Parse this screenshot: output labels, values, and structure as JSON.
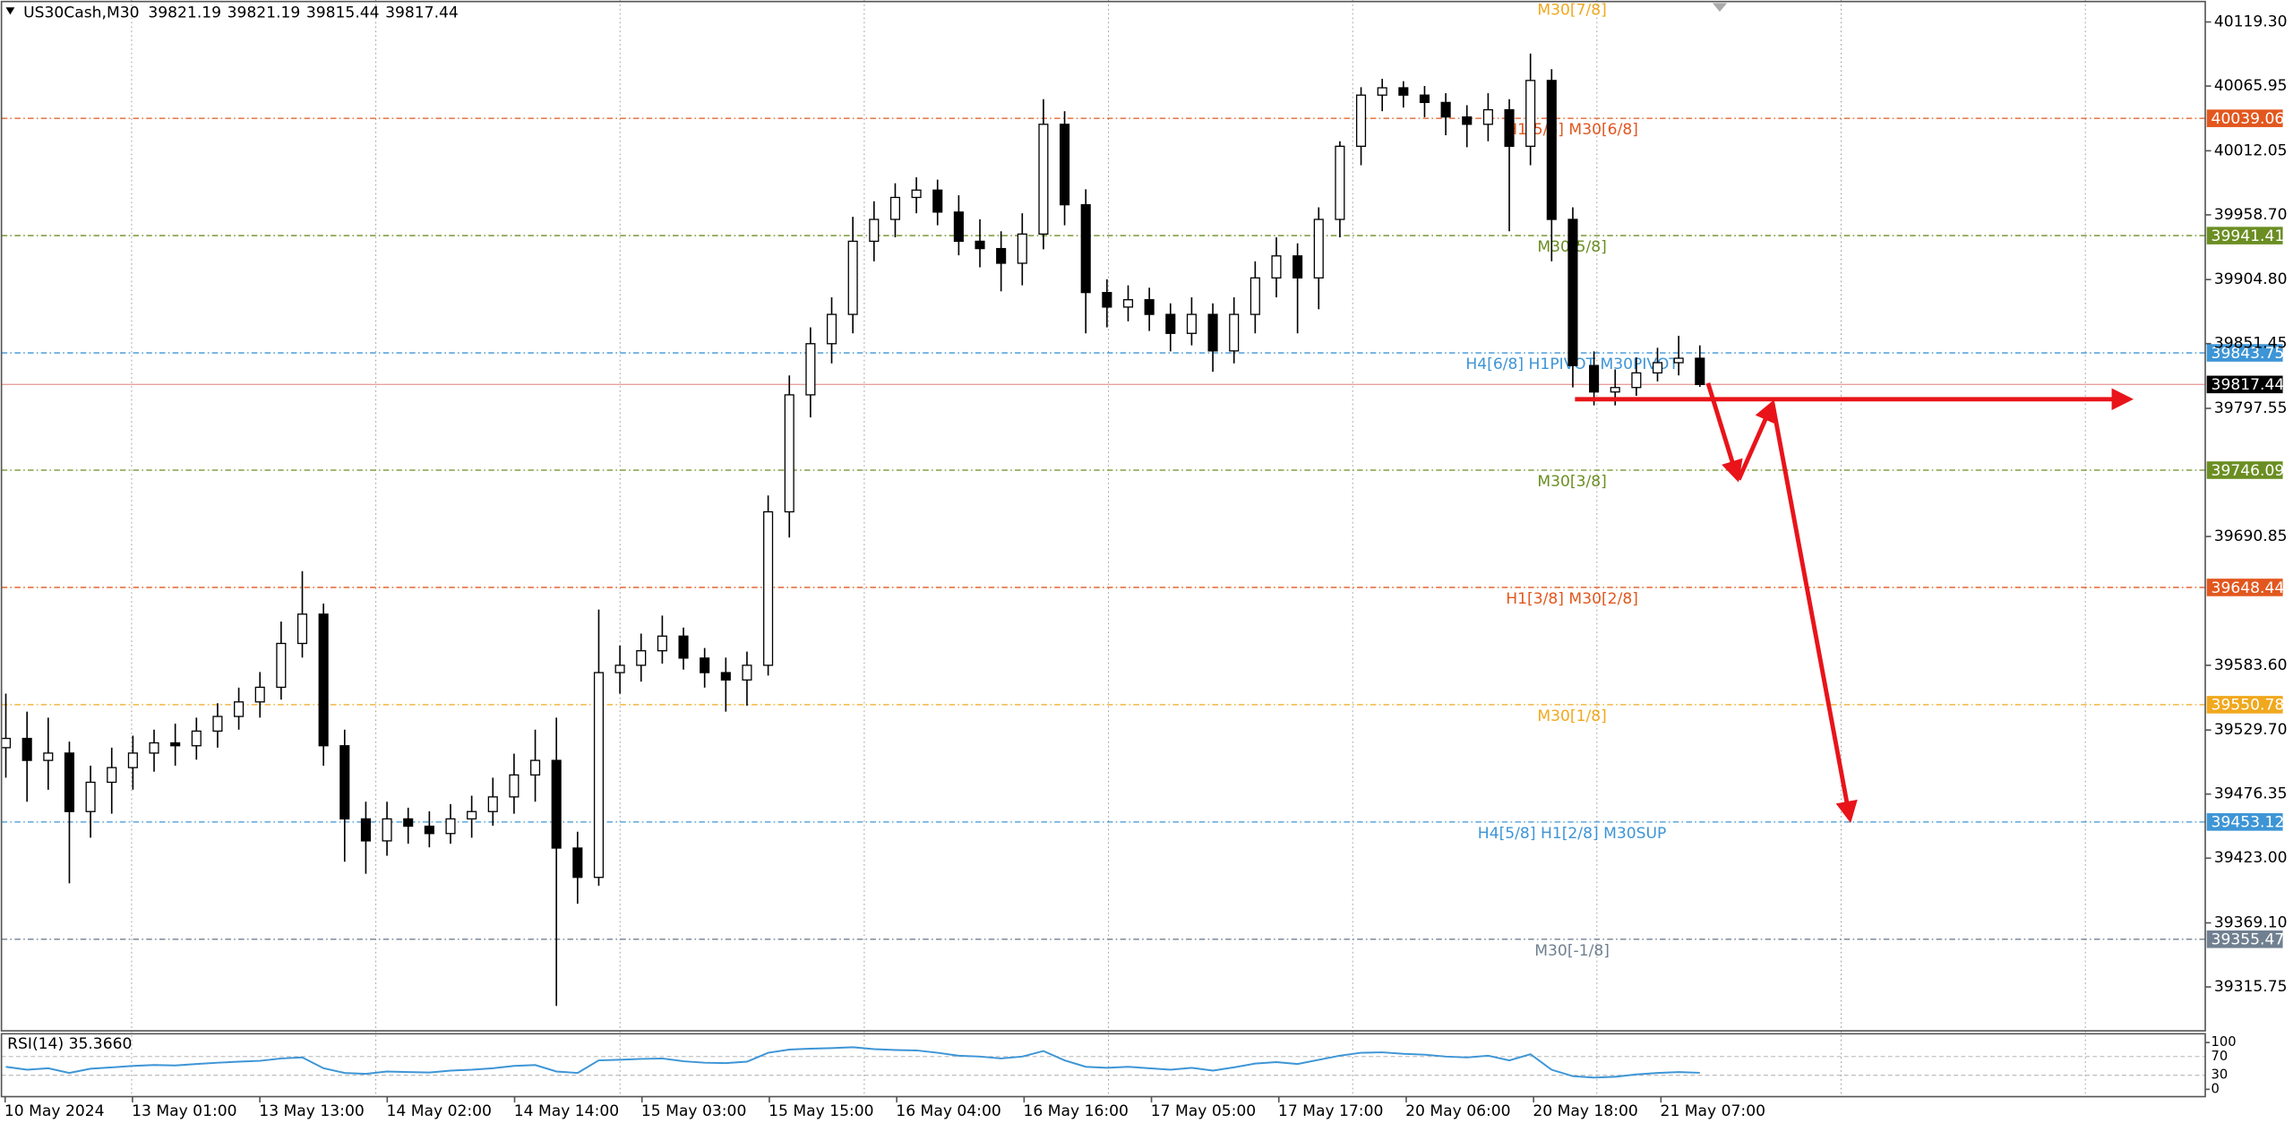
{
  "chart_data": {
    "type": "candlestick",
    "symbol": "US30Cash,M30",
    "quote": [
      39821.19,
      39821.19,
      39815.44,
      39817.44
    ],
    "last_price": 39817.44,
    "ylim": [
      39279.2,
      40137.56
    ],
    "yticks": [
      {
        "value": 40119.3,
        "label": "40119.30"
      },
      40065.95,
      40012.05,
      {
        "value": 39958.7,
        "label": "39958.70"
      },
      {
        "value": 39904.8,
        "label": "39904.80"
      },
      39851.45,
      39797.55,
      39690.85,
      {
        "value": 39583.6,
        "label": "39583.60"
      },
      {
        "value": 39529.7,
        "label": "39529.70"
      },
      39476.35,
      {
        "value": 39423.0,
        "label": "39423.00"
      },
      {
        "value": 39369.1,
        "label": "39369.10"
      },
      39315.75
    ],
    "x_labels": [
      "10 May 2024",
      "13 May 01:00",
      "13 May 13:00",
      "14 May 02:00",
      "14 May 14:00",
      "15 May 03:00",
      "15 May 15:00",
      "16 May 04:00",
      "16 May 16:00",
      "17 May 05:00",
      "17 May 17:00",
      "20 May 06:00",
      "20 May 18:00",
      "21 May 07:00"
    ],
    "annotations": [
      {
        "text": "M30[7/8]",
        "color": "#f0a81e"
      }
    ],
    "levels": [
      {
        "label": "H1[5/8] M30[6/8]",
        "value": 40039.06,
        "color": "#e2571e"
      },
      {
        "label": "M30[5/8]",
        "value": 39941.41,
        "color": "#6b8e23"
      },
      {
        "label": "H4[6/8] H1PIVOT M30PIVOT",
        "value": 39843.75,
        "color": "#3d95d6"
      },
      {
        "label": "M30[3/8]",
        "value": 39746.09,
        "color": "#6b8e23"
      },
      {
        "label": "H1[3/8] M30[2/8]",
        "value": 39648.44,
        "color": "#e2571e"
      },
      {
        "label": "M30[1/8]",
        "value": 39550.78,
        "color": "#f0a81e"
      },
      {
        "label": "H4[5/8] H1[2/8] M30SUP",
        "value": 39453.12,
        "color": "#3d95d6"
      },
      {
        "label": "M30[-1/8]",
        "value": 39355.47,
        "color": "#708090"
      }
    ],
    "candles": [
      [
        39515.0,
        39560.0,
        39490.0,
        39522.7
      ],
      [
        39522.7,
        39545.0,
        39470.0,
        39504.4
      ],
      [
        39504.4,
        39540.0,
        39480.0,
        39510.5
      ],
      [
        39510.5,
        39520.0,
        39402.0,
        39461.8
      ],
      [
        39461.8,
        39500.0,
        39440.0,
        39486.2
      ],
      [
        39486.2,
        39515.0,
        39460.0,
        39498.4
      ],
      [
        39498.4,
        39525.0,
        39480.0,
        39510.5
      ],
      [
        39510.5,
        39530.0,
        39495.0,
        39519.0
      ],
      [
        39519.0,
        39535.0,
        39500.0,
        39516.6
      ],
      [
        39516.6,
        39540.0,
        39505.0,
        39528.8
      ],
      [
        39528.8,
        39552.0,
        39515.0,
        39541.0
      ],
      [
        39541.0,
        39565.0,
        39530.0,
        39553.1
      ],
      [
        39553.1,
        39578.0,
        39540.0,
        39565.3
      ],
      [
        39565.3,
        39620.0,
        39555.0,
        39601.8
      ],
      [
        39601.8,
        39662.0,
        39590.0,
        39626.2
      ],
      [
        39626.2,
        39635.0,
        39500.0,
        39516.6
      ],
      [
        39516.6,
        39530.0,
        39420.0,
        39455.7
      ],
      [
        39455.7,
        39470.0,
        39410.0,
        39437.4
      ],
      [
        39437.4,
        39470.0,
        39425.0,
        39455.7
      ],
      [
        39455.7,
        39465.0,
        39435.0,
        39449.6
      ],
      [
        39449.6,
        39462.0,
        39432.0,
        39443.5
      ],
      [
        39443.5,
        39468.0,
        39435.0,
        39455.7
      ],
      [
        39455.7,
        39475.0,
        39440.0,
        39461.8
      ],
      [
        39461.8,
        39490.0,
        39450.0,
        39474.0
      ],
      [
        39474.0,
        39510.0,
        39460.0,
        39492.3
      ],
      [
        39492.3,
        39530.0,
        39470.0,
        39504.4
      ],
      [
        39504.4,
        39540.0,
        39300.0,
        39431.4
      ],
      [
        39431.4,
        39445.0,
        39385.0,
        39407.0
      ],
      [
        39407.0,
        39630.0,
        39400.0,
        39577.5
      ],
      [
        39577.5,
        39600.0,
        39560.0,
        39583.6
      ],
      [
        39583.6,
        39610.0,
        39570.0,
        39595.7
      ],
      [
        39595.7,
        39625.0,
        39585.0,
        39607.9
      ],
      [
        39607.9,
        39615.0,
        39580.0,
        39589.6
      ],
      [
        39589.6,
        39598.0,
        39565.0,
        39577.5
      ],
      [
        39577.5,
        39590.0,
        39545.0,
        39571.4
      ],
      [
        39571.4,
        39595.0,
        39550.0,
        39583.6
      ],
      [
        39583.6,
        39725.0,
        39575.0,
        39711.4
      ],
      [
        39711.4,
        39825.0,
        39690.0,
        39808.8
      ],
      [
        39808.8,
        39865.0,
        39790.0,
        39851.4
      ],
      [
        39851.4,
        39890.0,
        39835.0,
        39875.8
      ],
      [
        39875.8,
        39957.0,
        39860.0,
        39936.7
      ],
      [
        39936.7,
        39970.0,
        39920.0,
        39954.9
      ],
      [
        39954.9,
        39985.0,
        39940.0,
        39973.2
      ],
      [
        39973.2,
        39990.0,
        39960.0,
        39979.3
      ],
      [
        39979.3,
        39988.0,
        39950.0,
        39961.0
      ],
      [
        39961.0,
        39975.0,
        39925.0,
        39936.7
      ],
      [
        39936.7,
        39955.0,
        39915.0,
        39930.6
      ],
      [
        39930.6,
        39945.0,
        39895.0,
        39918.4
      ],
      [
        39918.4,
        39960.0,
        39900.0,
        39942.7
      ],
      [
        39942.7,
        40055.0,
        39930.0,
        40034.1
      ],
      [
        40034.1,
        40045.0,
        39950.0,
        39967.1
      ],
      [
        39967.1,
        39980.0,
        39860.0,
        39894.0
      ],
      [
        39894.0,
        39905.0,
        39865.0,
        39881.9
      ],
      [
        39881.9,
        39900.0,
        39870.0,
        39888.0
      ],
      [
        39888.0,
        39898.0,
        39862.0,
        39875.8
      ],
      [
        39875.8,
        39885.0,
        39845.0,
        39860.0
      ],
      [
        39860.0,
        39890.0,
        39850.0,
        39875.8
      ],
      [
        39875.8,
        39885.0,
        39828.0,
        39845.4
      ],
      [
        39845.4,
        39890.0,
        39835.0,
        39875.8
      ],
      [
        39875.8,
        39920.0,
        39860.0,
        39906.2
      ],
      [
        39906.2,
        39940.0,
        39890.0,
        39924.5
      ],
      [
        39924.5,
        39935.0,
        39860.0,
        39906.2
      ],
      [
        39906.2,
        39965.0,
        39880.0,
        39954.9
      ],
      [
        39954.9,
        40020.0,
        39940.0,
        40015.8
      ],
      [
        40015.8,
        40065.0,
        40000.0,
        40058.4
      ],
      [
        40058.4,
        40072.0,
        40045.0,
        40064.5
      ],
      [
        40064.5,
        40070.0,
        40048.0,
        40058.4
      ],
      [
        40058.4,
        40066.0,
        40040.0,
        40052.3
      ],
      [
        40052.3,
        40060.0,
        40025.0,
        40040.2
      ],
      [
        40040.2,
        40050.0,
        40015.0,
        40034.1
      ],
      [
        40034.1,
        40060.0,
        40020.0,
        40046.2
      ],
      [
        40046.2,
        40055.0,
        39945.0,
        40015.8
      ],
      [
        40015.8,
        40093.0,
        40000.0,
        40070.6
      ],
      [
        40070.6,
        40080.0,
        39920.0,
        39954.9
      ],
      [
        39954.9,
        39965.0,
        39815.0,
        39833.2
      ],
      [
        39833.2,
        39845.0,
        39800.0,
        39811.2
      ],
      [
        39811.2,
        39830.0,
        39800.0,
        39814.9
      ],
      [
        39814.9,
        39840.0,
        39808.0,
        39827.1
      ],
      [
        39827.1,
        39848.0,
        39820.0,
        39835.6
      ],
      [
        39835.6,
        39858.0,
        39825.0,
        39839.3
      ],
      [
        39839.3,
        39850.0,
        39815.44,
        39817.44
      ]
    ],
    "indicator": {
      "label": "RSI(14) 35.3660",
      "color": "#3d95d6",
      "ylim": [
        0,
        100
      ],
      "yticks": [
        0,
        30,
        70,
        100
      ],
      "values": [
        48,
        42,
        45,
        35,
        44,
        47,
        50,
        52,
        51,
        54,
        57,
        59,
        61,
        66,
        68,
        45,
        35,
        33,
        38,
        37,
        36,
        40,
        42,
        45,
        50,
        52,
        38,
        35,
        62,
        63,
        65,
        66,
        60,
        57,
        56,
        59,
        78,
        85,
        87,
        88,
        90,
        86,
        84,
        83,
        78,
        72,
        70,
        66,
        70,
        82,
        62,
        48,
        46,
        48,
        45,
        42,
        46,
        40,
        47,
        55,
        58,
        54,
        63,
        72,
        78,
        79,
        76,
        74,
        70,
        68,
        72,
        62,
        75,
        42,
        28,
        25,
        27,
        32,
        35,
        37,
        35.366
      ]
    }
  }
}
